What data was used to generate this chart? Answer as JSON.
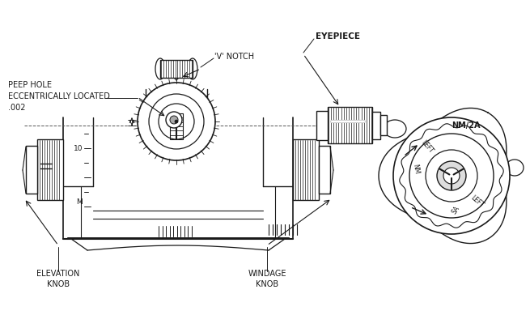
{
  "bg_color": "#ffffff",
  "line_color": "#1a1a1a",
  "text_color": "#1a1a1a",
  "labels": {
    "peep_hole": "PEEP HOLE\nECCENTRICALLY LOCATED\n.002",
    "v_notch": "'V' NOTCH",
    "eyepiece": "EYEPIECE",
    "elevation_knob": "ELEVATION\nKNOB",
    "windage_knob": "WINDAGE\nKNOB",
    "nm_2a": "NM/2A",
    "left1": "LEFT",
    "nm": "NM",
    "sa": "SA",
    "left2": "LEFT",
    "ten": "10",
    "m_mark": "M"
  },
  "figsize": [
    6.55,
    4.05
  ],
  "dpi": 100
}
